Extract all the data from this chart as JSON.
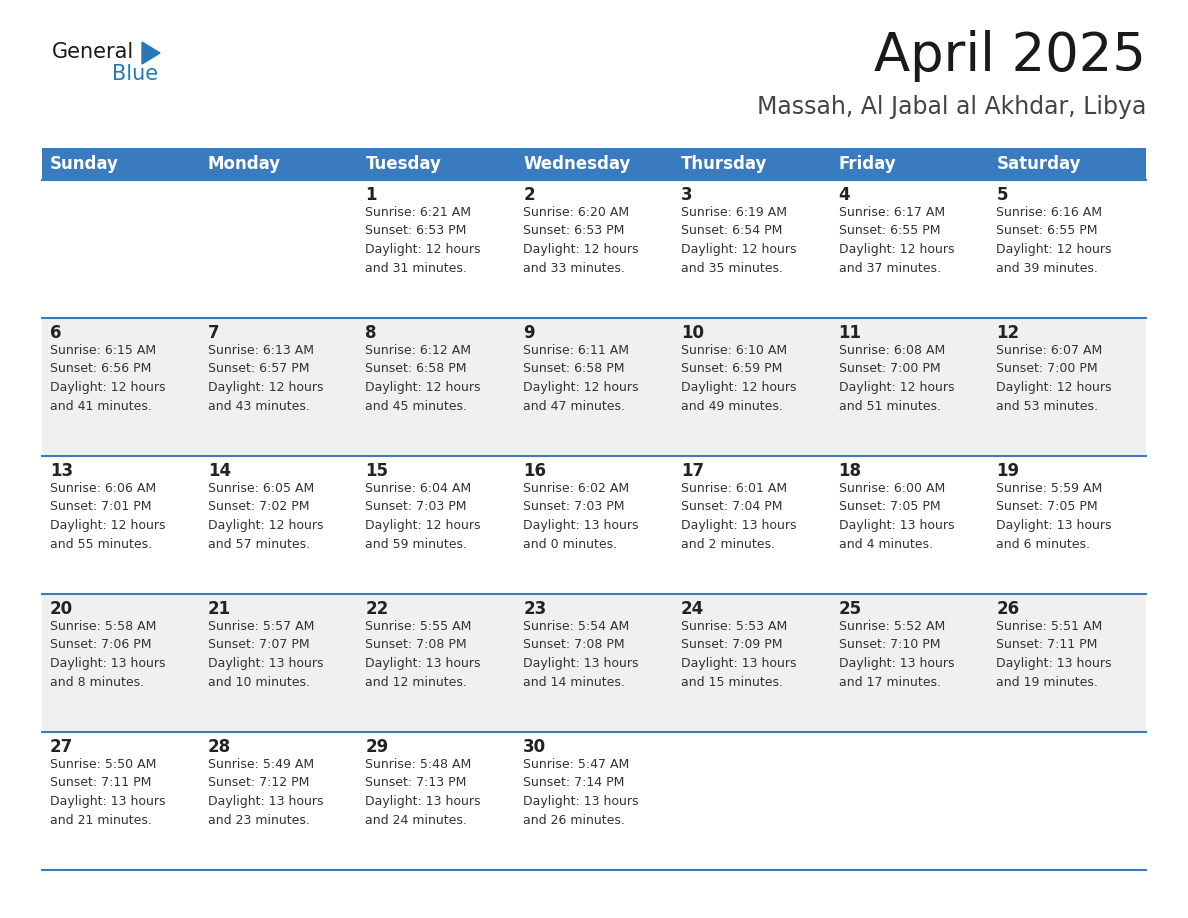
{
  "title": "April 2025",
  "subtitle": "Massah, Al Jabal al Akhdar, Libya",
  "header_bg_color": "#3a7abf",
  "header_text_color": "#ffffff",
  "days_of_week": [
    "Sunday",
    "Monday",
    "Tuesday",
    "Wednesday",
    "Thursday",
    "Friday",
    "Saturday"
  ],
  "bg_color": "#ffffff",
  "row_alt_color": "#f0f0f0",
  "cell_border_color": "#3a7abf",
  "day_number_color": "#222222",
  "text_color": "#333333",
  "calendar": [
    [
      {
        "day": null,
        "info": null
      },
      {
        "day": null,
        "info": null
      },
      {
        "day": 1,
        "info": "Sunrise: 6:21 AM\nSunset: 6:53 PM\nDaylight: 12 hours\nand 31 minutes."
      },
      {
        "day": 2,
        "info": "Sunrise: 6:20 AM\nSunset: 6:53 PM\nDaylight: 12 hours\nand 33 minutes."
      },
      {
        "day": 3,
        "info": "Sunrise: 6:19 AM\nSunset: 6:54 PM\nDaylight: 12 hours\nand 35 minutes."
      },
      {
        "day": 4,
        "info": "Sunrise: 6:17 AM\nSunset: 6:55 PM\nDaylight: 12 hours\nand 37 minutes."
      },
      {
        "day": 5,
        "info": "Sunrise: 6:16 AM\nSunset: 6:55 PM\nDaylight: 12 hours\nand 39 minutes."
      }
    ],
    [
      {
        "day": 6,
        "info": "Sunrise: 6:15 AM\nSunset: 6:56 PM\nDaylight: 12 hours\nand 41 minutes."
      },
      {
        "day": 7,
        "info": "Sunrise: 6:13 AM\nSunset: 6:57 PM\nDaylight: 12 hours\nand 43 minutes."
      },
      {
        "day": 8,
        "info": "Sunrise: 6:12 AM\nSunset: 6:58 PM\nDaylight: 12 hours\nand 45 minutes."
      },
      {
        "day": 9,
        "info": "Sunrise: 6:11 AM\nSunset: 6:58 PM\nDaylight: 12 hours\nand 47 minutes."
      },
      {
        "day": 10,
        "info": "Sunrise: 6:10 AM\nSunset: 6:59 PM\nDaylight: 12 hours\nand 49 minutes."
      },
      {
        "day": 11,
        "info": "Sunrise: 6:08 AM\nSunset: 7:00 PM\nDaylight: 12 hours\nand 51 minutes."
      },
      {
        "day": 12,
        "info": "Sunrise: 6:07 AM\nSunset: 7:00 PM\nDaylight: 12 hours\nand 53 minutes."
      }
    ],
    [
      {
        "day": 13,
        "info": "Sunrise: 6:06 AM\nSunset: 7:01 PM\nDaylight: 12 hours\nand 55 minutes."
      },
      {
        "day": 14,
        "info": "Sunrise: 6:05 AM\nSunset: 7:02 PM\nDaylight: 12 hours\nand 57 minutes."
      },
      {
        "day": 15,
        "info": "Sunrise: 6:04 AM\nSunset: 7:03 PM\nDaylight: 12 hours\nand 59 minutes."
      },
      {
        "day": 16,
        "info": "Sunrise: 6:02 AM\nSunset: 7:03 PM\nDaylight: 13 hours\nand 0 minutes."
      },
      {
        "day": 17,
        "info": "Sunrise: 6:01 AM\nSunset: 7:04 PM\nDaylight: 13 hours\nand 2 minutes."
      },
      {
        "day": 18,
        "info": "Sunrise: 6:00 AM\nSunset: 7:05 PM\nDaylight: 13 hours\nand 4 minutes."
      },
      {
        "day": 19,
        "info": "Sunrise: 5:59 AM\nSunset: 7:05 PM\nDaylight: 13 hours\nand 6 minutes."
      }
    ],
    [
      {
        "day": 20,
        "info": "Sunrise: 5:58 AM\nSunset: 7:06 PM\nDaylight: 13 hours\nand 8 minutes."
      },
      {
        "day": 21,
        "info": "Sunrise: 5:57 AM\nSunset: 7:07 PM\nDaylight: 13 hours\nand 10 minutes."
      },
      {
        "day": 22,
        "info": "Sunrise: 5:55 AM\nSunset: 7:08 PM\nDaylight: 13 hours\nand 12 minutes."
      },
      {
        "day": 23,
        "info": "Sunrise: 5:54 AM\nSunset: 7:08 PM\nDaylight: 13 hours\nand 14 minutes."
      },
      {
        "day": 24,
        "info": "Sunrise: 5:53 AM\nSunset: 7:09 PM\nDaylight: 13 hours\nand 15 minutes."
      },
      {
        "day": 25,
        "info": "Sunrise: 5:52 AM\nSunset: 7:10 PM\nDaylight: 13 hours\nand 17 minutes."
      },
      {
        "day": 26,
        "info": "Sunrise: 5:51 AM\nSunset: 7:11 PM\nDaylight: 13 hours\nand 19 minutes."
      }
    ],
    [
      {
        "day": 27,
        "info": "Sunrise: 5:50 AM\nSunset: 7:11 PM\nDaylight: 13 hours\nand 21 minutes."
      },
      {
        "day": 28,
        "info": "Sunrise: 5:49 AM\nSunset: 7:12 PM\nDaylight: 13 hours\nand 23 minutes."
      },
      {
        "day": 29,
        "info": "Sunrise: 5:48 AM\nSunset: 7:13 PM\nDaylight: 13 hours\nand 24 minutes."
      },
      {
        "day": 30,
        "info": "Sunrise: 5:47 AM\nSunset: 7:14 PM\nDaylight: 13 hours\nand 26 minutes."
      },
      {
        "day": null,
        "info": null
      },
      {
        "day": null,
        "info": null
      },
      {
        "day": null,
        "info": null
      }
    ]
  ],
  "logo_text_general": "General",
  "logo_text_blue": "Blue",
  "logo_triangle_color": "#2778b5",
  "title_fontsize": 38,
  "subtitle_fontsize": 17,
  "header_fontsize": 12,
  "day_number_fontsize": 12,
  "info_fontsize": 9
}
